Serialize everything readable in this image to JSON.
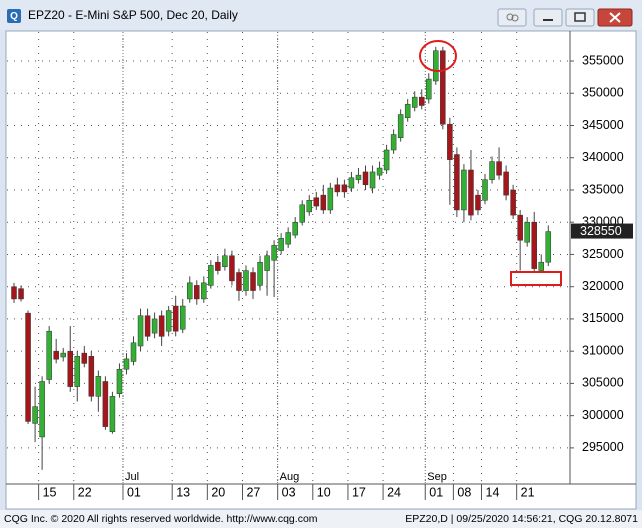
{
  "chart_data": {
    "type": "candlestick",
    "title": "EPZ20 - E-Mini S&P 500, Dec 20, Daily",
    "categories": [
      null,
      null,
      null,
      null,
      "15",
      null,
      null,
      null,
      null,
      "22",
      null,
      null,
      null,
      null,
      null,
      null,
      "01",
      null,
      null,
      null,
      null,
      null,
      null,
      "13",
      null,
      null,
      null,
      null,
      "20",
      null,
      null,
      null,
      null,
      "27",
      null,
      null,
      null,
      null,
      "03",
      null,
      null,
      null,
      null,
      "10",
      null,
      null,
      null,
      null,
      "17",
      null,
      null,
      null,
      null,
      "24",
      null,
      null,
      null,
      null,
      null,
      "01",
      null,
      null,
      null,
      "08",
      null,
      null,
      null,
      "14",
      null,
      null,
      null,
      null,
      "21",
      null,
      null,
      null,
      null
    ],
    "month_labels": [
      {
        "index": 16,
        "label": "Jul"
      },
      {
        "index": 38,
        "label": "Aug"
      },
      {
        "index": 59,
        "label": "Sep"
      }
    ],
    "open": [
      320000,
      319700,
      315900,
      298800,
      296700,
      305600,
      310000,
      309100,
      310000,
      304500,
      309700,
      309200,
      303000,
      305300,
      297500,
      303400,
      307200,
      308400,
      310800,
      315500,
      312800,
      315500,
      313100,
      317000,
      313400,
      318100,
      320200,
      318100,
      320200,
      323800,
      323100,
      324800,
      322200,
      319400,
      322200,
      320200,
      322500,
      324100,
      325600,
      326600,
      328000,
      330000,
      331600,
      333800,
      334200,
      331900,
      335800,
      335800,
      335300,
      336600,
      337800,
      335300,
      337300,
      338100,
      341200,
      343100,
      346200,
      347800,
      349400,
      349100,
      351900,
      356600,
      345200,
      340500,
      331900,
      338100,
      334200,
      333400,
      336600,
      339400,
      337800,
      335000,
      331100,
      326900,
      330000,
      322500,
      323800
    ],
    "high": [
      320600,
      320200,
      316300,
      304500,
      306100,
      313900,
      311900,
      310500,
      313900,
      310000,
      310800,
      310000,
      307000,
      306100,
      303700,
      308100,
      309700,
      312300,
      316600,
      316600,
      316000,
      316300,
      317000,
      318600,
      318100,
      321600,
      321000,
      321600,
      324100,
      324800,
      325900,
      325600,
      322800,
      323300,
      323000,
      324800,
      325600,
      327200,
      328300,
      329200,
      330800,
      333400,
      334200,
      334700,
      335800,
      336100,
      336900,
      336600,
      337800,
      338400,
      338800,
      338800,
      339400,
      342000,
      344400,
      347500,
      349100,
      350300,
      350600,
      353100,
      357200,
      357200,
      346200,
      341600,
      339000,
      341200,
      335000,
      337500,
      340200,
      341600,
      338800,
      335800,
      331900,
      330800,
      331600,
      325000,
      329500
    ],
    "low": [
      317500,
      317700,
      298700,
      295900,
      291600,
      305000,
      308100,
      308400,
      303700,
      302200,
      307500,
      302200,
      300600,
      297800,
      297200,
      302800,
      306400,
      307800,
      310000,
      311600,
      312000,
      310800,
      312300,
      312300,
      312800,
      317500,
      317200,
      317500,
      319700,
      321900,
      322500,
      320200,
      317800,
      318600,
      318100,
      319400,
      318600,
      318400,
      325000,
      326000,
      327500,
      329500,
      331000,
      331900,
      331300,
      331300,
      334000,
      333800,
      334700,
      336000,
      335000,
      334500,
      336600,
      337500,
      340600,
      342500,
      345600,
      347200,
      347500,
      348400,
      351300,
      344400,
      332700,
      330800,
      330000,
      330300,
      331100,
      332800,
      336000,
      336600,
      333400,
      330500,
      322500,
      326200,
      322200,
      322200,
      323200
    ],
    "close": [
      318100,
      318100,
      299100,
      301400,
      305300,
      313100,
      308750,
      309700,
      304500,
      309200,
      308100,
      303000,
      306100,
      298300,
      303000,
      307200,
      308800,
      311300,
      315500,
      312300,
      315000,
      312300,
      316300,
      313100,
      317000,
      320600,
      318100,
      320600,
      323300,
      322500,
      324800,
      320900,
      319400,
      322500,
      319400,
      323800,
      324800,
      326400,
      327500,
      328400,
      330000,
      332700,
      333400,
      332500,
      331900,
      335300,
      334700,
      334700,
      336900,
      337300,
      335800,
      337800,
      338400,
      341200,
      343600,
      346700,
      348300,
      349400,
      348100,
      352200,
      356600,
      345200,
      339700,
      331900,
      338100,
      331100,
      331900,
      336600,
      339400,
      337300,
      334200,
      331100,
      327200,
      330000,
      322800,
      323800,
      328550
    ],
    "up_color": "#33b033",
    "down_color": "#a3161b",
    "ylim": [
      289400,
      359500
    ],
    "yticks": [
      295000,
      300000,
      305000,
      310000,
      315000,
      320000,
      325000,
      330000,
      335000,
      340000,
      345000,
      350000,
      355000
    ],
    "grid": true
  },
  "footer": {
    "left": "CQG Inc. © 2020 All rights reserved worldwide. http://www.cqg.com",
    "right": "EPZ20,D | 09/25/2020 14:56:21, CQG 20.12.8071"
  }
}
